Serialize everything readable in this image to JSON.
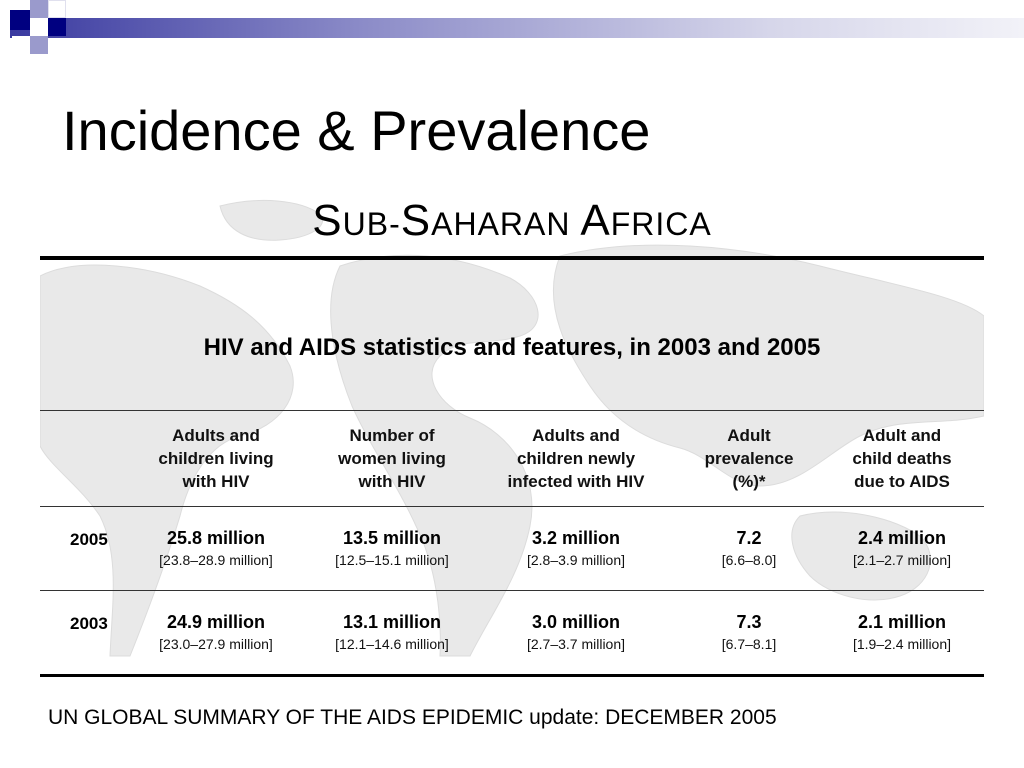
{
  "slide": {
    "title": "Incidence & Prevalence",
    "source": "UN GLOBAL SUMMARY OF THE AIDS EPIDEMIC update: DECEMBER 2005"
  },
  "figure": {
    "region_title_parts": [
      "S",
      "UB-",
      "S",
      "AHARAN ",
      "A",
      "FRICA"
    ],
    "table_title": "HIV and AIDS statistics and features, in 2003 and 2005",
    "columns": [
      [
        "Adults and",
        "children living",
        "with HIV"
      ],
      [
        "Number of",
        "women living",
        "with HIV"
      ],
      [
        "Adults and",
        "children newly",
        "infected with HIV"
      ],
      [
        "Adult",
        "prevalence",
        "(%)*"
      ],
      [
        "Adult and",
        "child deaths",
        "due to AIDS"
      ]
    ],
    "rows": [
      {
        "year": "2005",
        "cells": [
          {
            "value": "25.8 million",
            "range": "[23.8–28.9 million]"
          },
          {
            "value": "13.5 million",
            "range": "[12.5–15.1 million]"
          },
          {
            "value": "3.2 million",
            "range": "[2.8–3.9 million]"
          },
          {
            "value": "7.2",
            "range": "[6.6–8.0]"
          },
          {
            "value": "2.4 million",
            "range": "[2.1–2.7 million]"
          }
        ]
      },
      {
        "year": "2003",
        "cells": [
          {
            "value": "24.9 million",
            "range": "[23.0–27.9 million]"
          },
          {
            "value": "13.1 million",
            "range": "[12.1–14.6 million]"
          },
          {
            "value": "3.0 million",
            "range": "[2.7–3.7 million]"
          },
          {
            "value": "7.3",
            "range": "[6.7–8.1]"
          },
          {
            "value": "2.1 million",
            "range": "[1.9–2.4 million]"
          }
        ]
      }
    ]
  },
  "colors": {
    "accent_dark": "#000080",
    "accent_light": "#9a9acc",
    "map_gray": "#e6e6e6"
  }
}
